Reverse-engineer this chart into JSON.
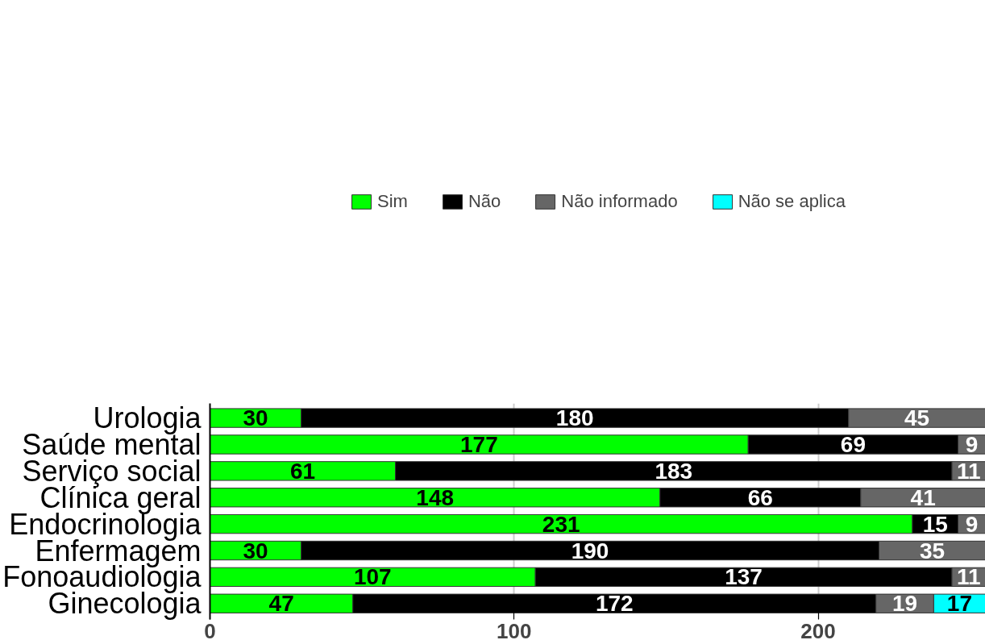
{
  "chart_data": {
    "type": "bar",
    "orientation": "horizontal",
    "stacked": true,
    "data_labels": true,
    "grid": "x",
    "legend": "top",
    "categories": [
      "Urologia",
      "Saúde mental",
      "Serviço social",
      "Clínica geral",
      "Endocrinologia",
      "Enfermagem",
      "Fonoaudiologia",
      "Ginecologia"
    ],
    "series": [
      {
        "name": "Sim",
        "color": "#00ff00",
        "values": [
          30,
          177,
          61,
          148,
          231,
          30,
          107,
          47
        ]
      },
      {
        "name": "Não",
        "color": "#000000",
        "values": [
          180,
          69,
          183,
          66,
          15,
          190,
          137,
          172
        ]
      },
      {
        "name": "Não informado",
        "color": "#666666",
        "values": [
          45,
          9,
          11,
          41,
          9,
          35,
          11,
          19
        ]
      },
      {
        "name": "Não se aplica",
        "color": "#00ffff",
        "values": [
          null,
          null,
          null,
          null,
          null,
          null,
          null,
          17
        ]
      }
    ],
    "xlim": [
      0,
      255
    ],
    "xticks": [
      0,
      100,
      200
    ]
  }
}
